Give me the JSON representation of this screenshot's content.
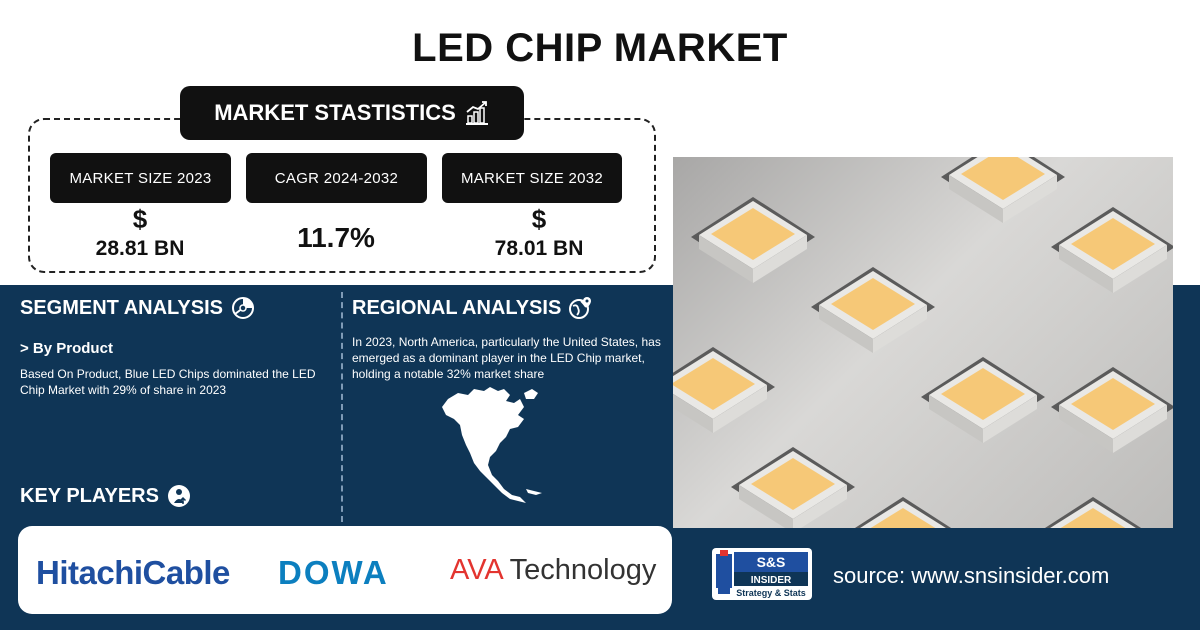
{
  "title": "LED CHIP MARKET",
  "stats": {
    "heading": "MARKET STASTISTICS",
    "items": [
      {
        "label": "MARKET SIZE 2023",
        "symbol": "$",
        "value": "28.81 BN"
      },
      {
        "label": "CAGR 2024-2032",
        "symbol": "",
        "value": "11.7%"
      },
      {
        "label": "MARKET SIZE 2032",
        "symbol": "$",
        "value": "78.01 BN"
      }
    ]
  },
  "segment": {
    "title": "SEGMENT ANALYSIS",
    "subheading": "> By Product",
    "text": "Based On Product, Blue LED Chips dominated the LED Chip Market with 29% of share in 2023"
  },
  "regional": {
    "title": "REGIONAL ANALYSIS",
    "text": "In 2023, North America, particularly the United States, has emerged as a dominant player in the LED Chip market, holding a notable 32% market share"
  },
  "key_players": {
    "title": "KEY PLAYERS",
    "logos": [
      "HitachiCable",
      "DOWA",
      "AVA Technology"
    ]
  },
  "brand": {
    "logo_top": "S&S",
    "logo_mid": "INSIDER",
    "logo_bottom": "Strategy & Stats"
  },
  "source": "source: www.snsinsider.com",
  "colors": {
    "navy": "#0f3556",
    "black": "#111111",
    "led_yellow": "#f6c877"
  }
}
